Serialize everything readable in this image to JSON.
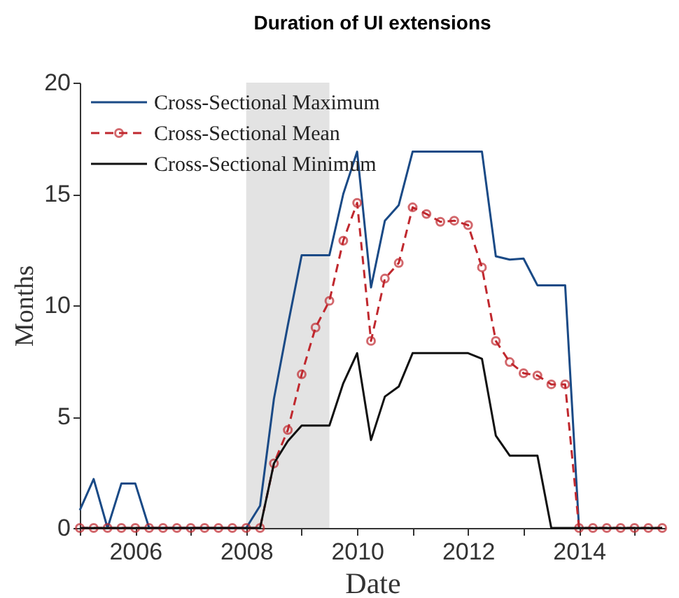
{
  "chart_data": {
    "type": "line",
    "title": "Duration of UI extensions",
    "xlabel": "Date",
    "ylabel": "Months",
    "x": [
      2005,
      2005.25,
      2005.5,
      2005.75,
      2006,
      2006.25,
      2006.5,
      2006.75,
      2007,
      2007.25,
      2007.5,
      2007.75,
      2008,
      2008.25,
      2008.5,
      2008.75,
      2009,
      2009.25,
      2009.5,
      2009.75,
      2010,
      2010.25,
      2010.5,
      2010.75,
      2011,
      2011.25,
      2011.5,
      2011.75,
      2012,
      2012.25,
      2012.5,
      2012.75,
      2013,
      2013.25,
      2013.5,
      2013.75,
      2014,
      2014.25,
      2014.5,
      2014.75,
      2015,
      2015.25,
      2015.5
    ],
    "series": [
      {
        "name": "Cross-Sectional Maximum",
        "color": "#1a4a86",
        "line_style": "solid",
        "marker": "none",
        "values": [
          0.8,
          2.2,
          0,
          2.0,
          2.0,
          0,
          0,
          0,
          0,
          0,
          0,
          0,
          0,
          1.0,
          5.8,
          9.1,
          12.25,
          12.25,
          12.25,
          15.0,
          16.9,
          10.8,
          13.8,
          14.5,
          16.9,
          16.9,
          16.9,
          16.9,
          16.9,
          16.9,
          12.2,
          12.05,
          12.1,
          10.9,
          10.9,
          10.9,
          0,
          null,
          null,
          null,
          null,
          null,
          null
        ]
      },
      {
        "name": "Cross-Sectional Mean",
        "color": "#c0282e",
        "line_style": "dashed",
        "marker": "circle",
        "values": [
          0,
          0,
          0,
          0,
          0,
          0,
          0,
          0,
          0,
          0,
          0,
          0,
          0,
          0,
          2.9,
          4.4,
          6.9,
          9.0,
          10.2,
          12.9,
          14.6,
          8.4,
          11.2,
          11.9,
          14.4,
          14.1,
          13.75,
          13.8,
          13.6,
          11.7,
          8.4,
          7.45,
          6.95,
          6.85,
          6.45,
          6.45,
          0,
          0,
          0,
          0,
          0,
          0,
          0
        ]
      },
      {
        "name": "Cross-Sectional Minimum",
        "color": "#111111",
        "line_style": "solid",
        "marker": "none",
        "values": [
          0,
          0,
          0,
          0,
          0,
          0,
          0,
          0,
          0,
          0,
          0,
          0,
          0,
          0,
          2.9,
          3.9,
          4.6,
          4.6,
          4.6,
          6.5,
          7.85,
          3.95,
          5.9,
          6.35,
          7.85,
          7.85,
          7.85,
          7.85,
          7.85,
          7.6,
          4.15,
          3.25,
          3.25,
          3.25,
          0,
          0,
          0,
          0,
          0,
          0,
          0,
          0,
          0
        ]
      }
    ],
    "xlim": [
      2005,
      2015.55
    ],
    "xticks": [
      {
        "value": 2005,
        "label": null
      },
      2006,
      {
        "value": 2007,
        "label": null
      },
      2008,
      {
        "value": 2009,
        "label": null
      },
      2010,
      {
        "value": 2011,
        "label": null
      },
      2012,
      {
        "value": 2013,
        "label": null
      },
      2014,
      {
        "value": 2015,
        "label": null
      }
    ],
    "ylim": [
      0,
      20
    ],
    "yticks": [
      0,
      5,
      10,
      15,
      20
    ],
    "bands": [
      {
        "axis": "x",
        "from": 2008,
        "to": 2009.5,
        "color": "#e3e3e3"
      }
    ],
    "grid": false,
    "legend": "top left"
  }
}
